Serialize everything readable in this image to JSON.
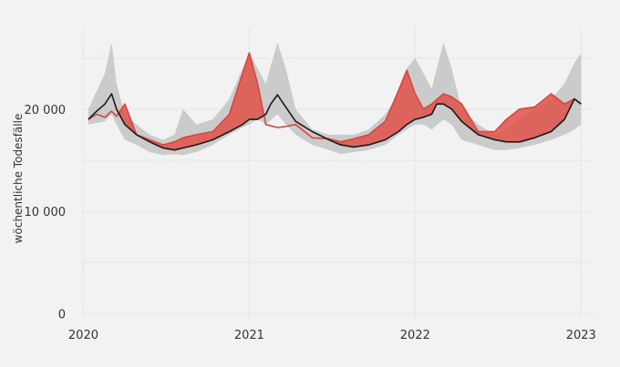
{
  "chart_data": {
    "type": "area",
    "title": "",
    "xlabel": "",
    "ylabel": "wöchentliche Todesfälle",
    "xlim": [
      2019.97,
      2023.07
    ],
    "ylim": [
      -500,
      28000
    ],
    "x_ticks": [
      {
        "value": 2020,
        "label": "2020"
      },
      {
        "value": 2021,
        "label": "2021"
      },
      {
        "value": 2022,
        "label": "2022"
      },
      {
        "value": 2023,
        "label": "2023"
      }
    ],
    "y_ticks": [
      {
        "value": 0,
        "label": "0"
      },
      {
        "value": 10000,
        "label": "10 000"
      },
      {
        "value": 20000,
        "label": "20 000"
      }
    ],
    "grid": true,
    "legend": "none",
    "colors": {
      "background": "#f2f2f2",
      "grid": "#e6e6e6",
      "expected_band": "#c8c8c8",
      "expected_line": "#1a1a1a",
      "excess_fill": "#e0524a",
      "actual_line": "#d8453c"
    },
    "series": [
      {
        "role": "expected_band",
        "x": [
          2020.03,
          2020.13,
          2020.17,
          2020.2,
          2020.25,
          2020.32,
          2020.4,
          2020.48,
          2020.55,
          2020.6,
          2020.68,
          2020.78,
          2020.88,
          2020.96,
          2021.0,
          2021.05,
          2021.1,
          2021.17,
          2021.22,
          2021.28,
          2021.38,
          2021.48,
          2021.55,
          2021.63,
          2021.72,
          2021.82,
          2021.9,
          2021.95,
          2022.0,
          2022.05,
          2022.1,
          2022.17,
          2022.22,
          2022.28,
          2022.38,
          2022.48,
          2022.55,
          2022.63,
          2022.72,
          2022.82,
          2022.9,
          2022.96,
          2023.0
        ],
        "upper": [
          20000,
          23500,
          26500,
          22500,
          19500,
          18500,
          17500,
          17000,
          17500,
          20000,
          18500,
          19000,
          21000,
          24000,
          25500,
          24000,
          22500,
          26500,
          24000,
          20000,
          18000,
          17500,
          17500,
          17500,
          18000,
          19500,
          21500,
          24000,
          25000,
          23500,
          22000,
          26500,
          24000,
          20000,
          18500,
          17500,
          18000,
          19000,
          20000,
          21000,
          22500,
          24500,
          25500
        ],
        "lower": [
          18500,
          18800,
          19500,
          18500,
          17000,
          16500,
          15800,
          15500,
          15600,
          15500,
          15800,
          16500,
          17500,
          18200,
          18500,
          19000,
          18500,
          19500,
          18500,
          17500,
          16500,
          16000,
          15600,
          15800,
          16000,
          16500,
          17500,
          18000,
          18500,
          18500,
          18000,
          19000,
          18500,
          17000,
          16500,
          16000,
          16000,
          16200,
          16500,
          17000,
          17500,
          18000,
          18500
        ]
      },
      {
        "role": "expected_line",
        "x": [
          2020.03,
          2020.08,
          2020.13,
          2020.17,
          2020.2,
          2020.25,
          2020.32,
          2020.4,
          2020.48,
          2020.55,
          2020.6,
          2020.68,
          2020.78,
          2020.88,
          2020.96,
          2021.0,
          2021.05,
          2021.1,
          2021.13,
          2021.17,
          2021.22,
          2021.28,
          2021.38,
          2021.48,
          2021.55,
          2021.63,
          2021.72,
          2021.82,
          2021.9,
          2021.95,
          2022.0,
          2022.05,
          2022.1,
          2022.13,
          2022.17,
          2022.22,
          2022.28,
          2022.38,
          2022.48,
          2022.55,
          2022.63,
          2022.72,
          2022.82,
          2022.9,
          2022.96,
          2023.0
        ],
        "y": [
          19000,
          19800,
          20500,
          21500,
          20000,
          18500,
          17500,
          16800,
          16200,
          16000,
          16200,
          16500,
          17000,
          17800,
          18500,
          19000,
          19000,
          19500,
          20500,
          21400,
          20200,
          18800,
          17800,
          17000,
          16500,
          16300,
          16500,
          17000,
          17800,
          18500,
          19000,
          19200,
          19500,
          20500,
          20500,
          20000,
          18800,
          17500,
          17000,
          16800,
          16800,
          17200,
          17800,
          19000,
          21000,
          20500
        ]
      },
      {
        "role": "actual_line",
        "x": [
          2020.03,
          2020.08,
          2020.13,
          2020.17,
          2020.2,
          2020.25,
          2020.32,
          2020.4,
          2020.48,
          2020.55,
          2020.6,
          2020.68,
          2020.78,
          2020.88,
          2020.96,
          2021.0,
          2021.05,
          2021.1,
          2021.17,
          2021.22,
          2021.28,
          2021.38,
          2021.48,
          2021.55,
          2021.63,
          2021.72,
          2021.82,
          2021.9,
          2021.95,
          2022.0,
          2022.05,
          2022.1,
          2022.17,
          2022.22,
          2022.28,
          2022.38,
          2022.48,
          2022.55,
          2022.63,
          2022.72,
          2022.82,
          2022.9,
          2022.96,
          2023.0
        ],
        "y": [
          19000,
          19500,
          19200,
          19800,
          19300,
          20500,
          17500,
          17000,
          16500,
          16800,
          17200,
          17500,
          17800,
          19500,
          23500,
          25500,
          22500,
          18500,
          18200,
          18300,
          18500,
          17200,
          17100,
          16800,
          17100,
          17500,
          18800,
          21800,
          23800,
          21500,
          20000,
          20500,
          21500,
          21200,
          20500,
          17800,
          17800,
          19000,
          20000,
          20200,
          21500,
          20500,
          21000,
          20500
        ]
      }
    ]
  }
}
